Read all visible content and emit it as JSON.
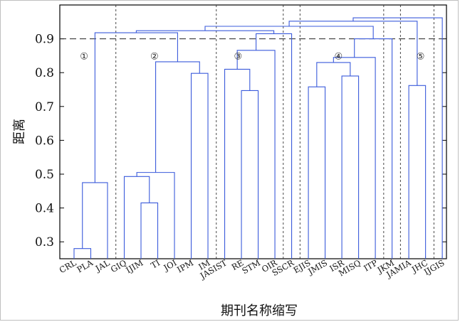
{
  "chart_data": {
    "type": "dendrogram",
    "xlabel": "期刊名称缩写",
    "ylabel": "距离",
    "ylim": [
      0.25,
      1.0
    ],
    "yticks": [
      0.3,
      0.4,
      0.5,
      0.6,
      0.7,
      0.8,
      0.9
    ],
    "threshold": 0.9,
    "link_color": "#3b5bdb",
    "leaves": [
      "CRL",
      "PLA",
      "JAL",
      "GIQ",
      "IJIM",
      "TI",
      "JOI",
      "IPM",
      "IM",
      "JASIST",
      "RE",
      "STM",
      "OIR",
      "SSCR",
      "EJIS",
      "JMIS",
      "ISR",
      "MISQ",
      "ITP",
      "JKM",
      "JAMIA",
      "JHC",
      "IJGIS"
    ],
    "links": [
      {
        "left": "CRL",
        "right": "PLA",
        "height": 0.28
      },
      {
        "left": "CRL+PLA",
        "right": "JAL",
        "height": 0.475
      },
      {
        "left": "IJIM",
        "right": "TI",
        "height": 0.415
      },
      {
        "left": "GIQ",
        "right": "IJIM+TI",
        "height": 0.493
      },
      {
        "left": "GIQ+IJIM+TI",
        "right": "JOI",
        "height": 0.505
      },
      {
        "left": "IPM",
        "right": "IM",
        "height": 0.798
      },
      {
        "left": "GIQ+IJIM+TI+JOI",
        "right": "IPM+IM",
        "height": 0.832
      },
      {
        "left": "RE",
        "right": "STM",
        "height": 0.747
      },
      {
        "left": "JASIST",
        "right": "RE+STM",
        "height": 0.81
      },
      {
        "left": "JASIST+RE+STM",
        "right": "OIR",
        "height": 0.866
      },
      {
        "left": "EJIS",
        "right": "JMIS",
        "height": 0.758
      },
      {
        "left": "ISR",
        "right": "MISQ",
        "height": 0.79
      },
      {
        "left": "EJIS+JMIS",
        "right": "ISR+MISQ",
        "height": 0.83
      },
      {
        "left": "EJIS+JMIS+ISR+MISQ",
        "right": "ITP",
        "height": 0.845
      },
      {
        "left": "JAMIA",
        "right": "JHC",
        "height": 0.762
      },
      {
        "left": "cluster1",
        "right": "cluster2",
        "height": 0.918
      },
      {
        "left": "cluster1+2",
        "right": "cluster3+SSCR",
        "height": 0.924
      },
      {
        "left": "cluster3",
        "right": "SSCR",
        "height": 0.915
      },
      {
        "left": "cluster4",
        "right": "JKM",
        "height": 0.9
      },
      {
        "left": "left-group",
        "right": "cluster4+JKM",
        "height": 0.937
      },
      {
        "left": "all-but-5",
        "right": "cluster5",
        "height": 0.952
      },
      {
        "left": "all",
        "right": "IJGIS",
        "height": 0.962
      }
    ],
    "cluster_labels": [
      "①",
      "②",
      "③",
      "④",
      "⑤"
    ],
    "grid": false
  }
}
